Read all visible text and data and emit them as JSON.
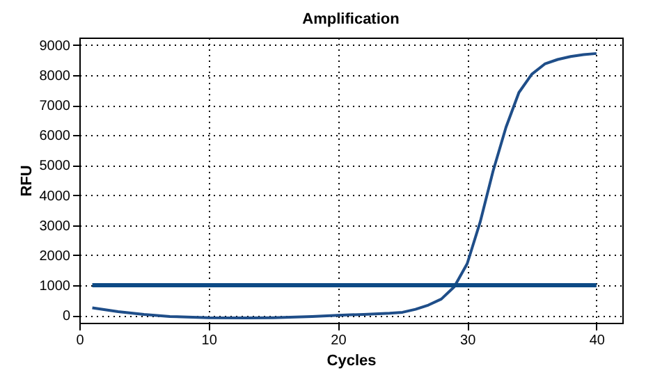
{
  "chart_data": {
    "type": "line",
    "title": "Amplification",
    "xlabel": "Cycles",
    "ylabel": "RFU",
    "x": [
      1,
      3,
      5,
      7,
      10,
      13,
      15,
      18,
      20,
      22,
      24,
      25,
      26,
      27,
      28,
      29,
      30,
      31,
      32,
      33,
      34,
      35,
      36,
      37,
      38,
      39,
      40
    ],
    "series": [
      {
        "color": "#1f4e89",
        "values": [
          250,
          120,
          30,
          -40,
          -80,
          -90,
          -80,
          -40,
          0,
          30,
          70,
          100,
          200,
          340,
          540,
          950,
          1720,
          3100,
          4800,
          6260,
          7420,
          8030,
          8370,
          8520,
          8620,
          8680,
          8720
        ]
      }
    ],
    "xlim": [
      0,
      42
    ],
    "xticks": [
      0,
      10,
      20,
      30,
      40
    ],
    "ylim": [
      -250,
      9250
    ],
    "yticks": [
      0,
      1000,
      2000,
      3000,
      4000,
      5000,
      6000,
      7000,
      8000,
      9000
    ],
    "grid": true,
    "marker": "none",
    "line_style": "solid",
    "ref_lines": [
      {
        "axis": "y",
        "value": 1000,
        "color": "#0d4a85"
      }
    ]
  }
}
